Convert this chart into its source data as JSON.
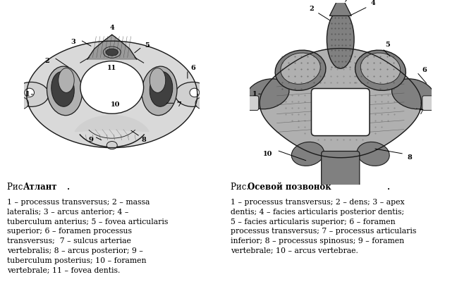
{
  "background_color": "#ffffff",
  "fig_width": 6.48,
  "fig_height": 4.37,
  "dpi": 100,
  "left_title_normal": "Рис. ",
  "left_title_bold": "Атлант",
  "left_title_end": ".",
  "right_title_normal": "Рис. ",
  "right_title_bold": "Осевой позвонок",
  "right_title_end": ".",
  "left_desc_lines": [
    "1 – processus transversus; 2 – massa",
    "lateralis; 3 – arcus anterior; 4 –",
    "tuberculum anterius; 5 – fovea articularis",
    "superior; 6 – foramen processus",
    "transversus;  7 – sulcus arteriae",
    "vertebralis; 8 – arcus posterior; 9 –",
    "tuberculum posterius; 10 – foramen",
    "vertebrale; 11 – fovea dentis."
  ],
  "right_desc_lines": [
    "1 – processus transversus; 2 – dens; 3 – apex",
    "dentis; 4 – facies articularis posterior dentis;",
    "5 – facies articularis superior; 6 – foramen",
    "processus transversus; 7 – processus articularis",
    "inferior; 8 – processus spinosus; 9 – foramen",
    "vertebrale; 10 – arcus vertebrae."
  ],
  "text_font_size": 7.8,
  "title_font_size": 8.5,
  "img_font_size": 7.0,
  "text_color": "#000000",
  "gray_dark": "#404040",
  "gray_mid": "#808080",
  "gray_light": "#b0b0b0",
  "gray_lighter": "#d0d0d0",
  "line_color": "#1a1a1a"
}
